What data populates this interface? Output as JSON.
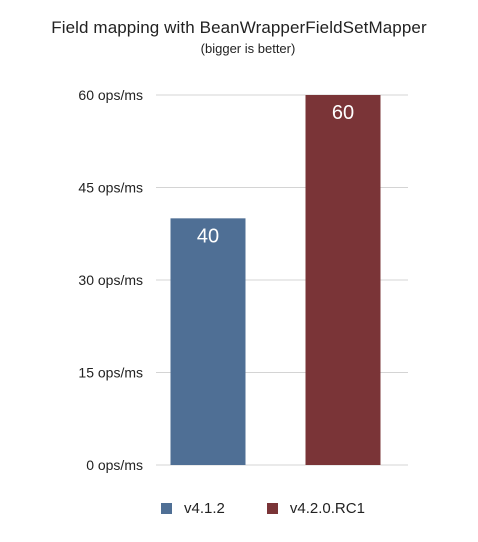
{
  "colors": {
    "series_1": "#4f6f95",
    "series_2": "#7a3437",
    "grid": "#d4d4d4",
    "label_text": "#ffffff"
  },
  "chart_data": {
    "type": "bar",
    "title": "Field mapping with BeanWrapperFieldSetMapper",
    "subtitle": "(bigger is better)",
    "xlabel": "",
    "ylabel": "",
    "ylim": [
      0,
      60
    ],
    "yticks": [
      0,
      15,
      30,
      45,
      60
    ],
    "ytick_labels": [
      "0 ops/ms",
      "15 ops/ms",
      "30 ops/ms",
      "45 ops/ms",
      "60 ops/ms"
    ],
    "grid": true,
    "legend_position": "bottom",
    "series": [
      {
        "name": "v4.1.2",
        "values": [
          40
        ],
        "data_label": "40"
      },
      {
        "name": "v4.2.0.RC1",
        "values": [
          60
        ],
        "data_label": "60"
      }
    ]
  }
}
